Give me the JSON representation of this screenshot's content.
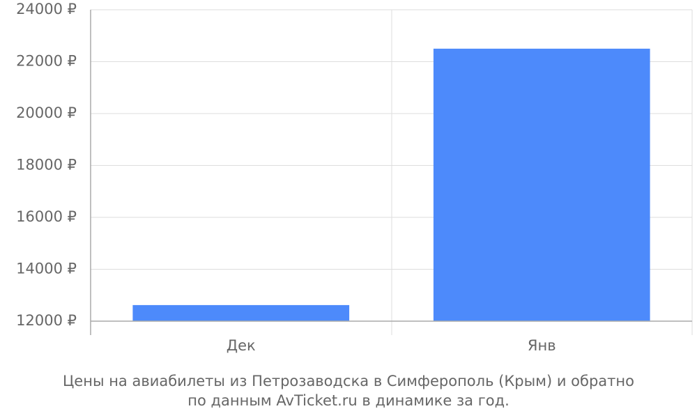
{
  "chart_data": {
    "type": "bar",
    "title": [
      "Цены на авиабилеты из Петрозаводска в Симферополь (Крым) и обратно",
      "по данным AvTicket.ru в динамике за год."
    ],
    "categories": [
      "Дек",
      "Янв"
    ],
    "values": [
      12620,
      22500
    ],
    "color": "#4d8afb",
    "ylim": [
      12000,
      24000
    ],
    "yticks": [
      {
        "value": 12000,
        "label": "12000 ₽"
      },
      {
        "value": 14000,
        "label": "14000 ₽"
      },
      {
        "value": 16000,
        "label": "16000 ₽"
      },
      {
        "value": 18000,
        "label": "18000 ₽"
      },
      {
        "value": 20000,
        "label": "20000 ₽"
      },
      {
        "value": 22000,
        "label": "22000 ₽"
      },
      {
        "value": 24000,
        "label": "24000 ₽"
      }
    ],
    "grid": true
  }
}
